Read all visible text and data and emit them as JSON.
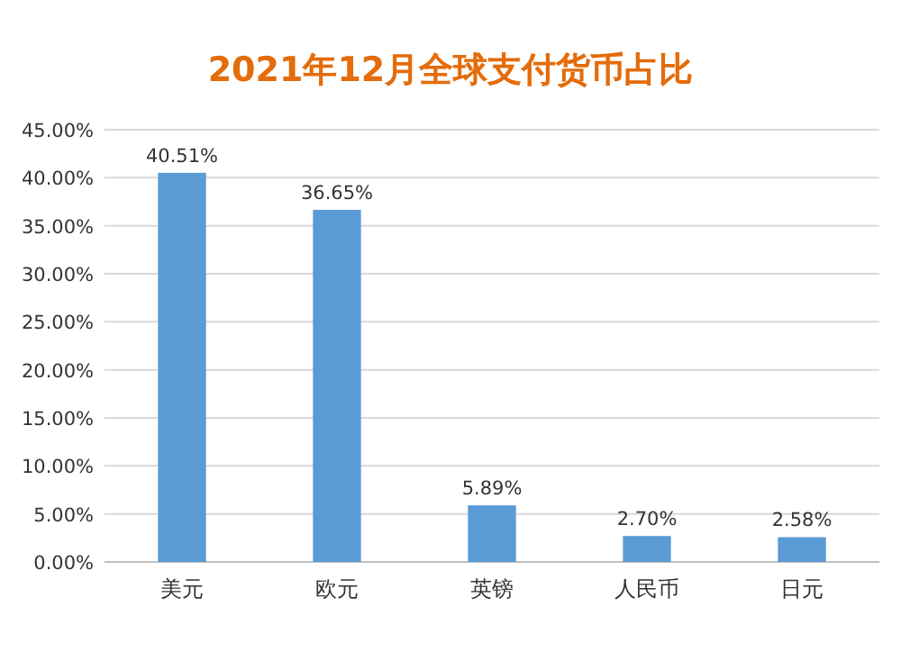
{
  "chart_data": {
    "type": "bar",
    "title": "2021年12月全球支付货币占比",
    "categories": [
      "美元",
      "欧元",
      "英镑",
      "人民币",
      "日元"
    ],
    "values": [
      40.51,
      36.65,
      5.89,
      2.7,
      2.58
    ],
    "value_labels": [
      "40.51%",
      "36.65%",
      "5.89%",
      "2.70%",
      "2.58%"
    ],
    "color": "#5b9bd5",
    "ylim": [
      0,
      45
    ],
    "yticks": [
      {
        "value": 0,
        "label": "0.00%"
      },
      {
        "value": 5,
        "label": "5.00%"
      },
      {
        "value": 10,
        "label": "10.00%"
      },
      {
        "value": 15,
        "label": "15.00%"
      },
      {
        "value": 20,
        "label": "20.00%"
      },
      {
        "value": 25,
        "label": "25.00%"
      },
      {
        "value": 30,
        "label": "30.00%"
      },
      {
        "value": 35,
        "label": "35.00%"
      },
      {
        "value": 40,
        "label": "40.00%"
      },
      {
        "value": 45,
        "label": "45.00%"
      }
    ],
    "grid": "y"
  }
}
